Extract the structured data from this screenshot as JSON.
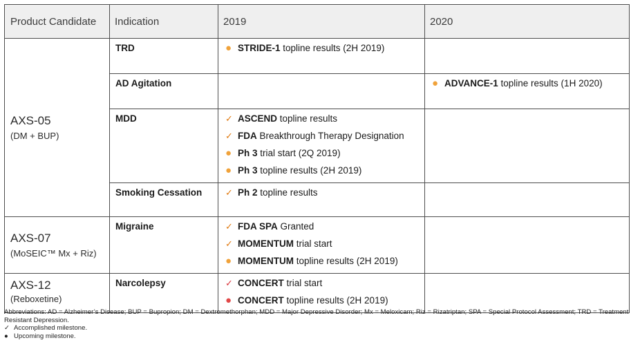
{
  "header": {
    "product": "Product Candidate",
    "indication": "Indication",
    "y2019": "2019",
    "y2020": "2020"
  },
  "products": [
    {
      "name": "AXS-05",
      "sub": "(DM + BUP)"
    },
    {
      "name": "AXS-07",
      "sub": "(MoSEIC™ Mx + Riz)"
    },
    {
      "name": "AXS-12",
      "sub": "(Reboxetine)"
    }
  ],
  "rows": [
    {
      "indication": "TRD",
      "m2019": [
        {
          "icon": "upcoming-dot",
          "bold": "STRIDE-1",
          "rest": " topline results (2H 2019)"
        }
      ],
      "m2020": []
    },
    {
      "indication": "AD Agitation",
      "m2019": [],
      "m2020": [
        {
          "icon": "upcoming-dot",
          "bold": "ADVANCE-1",
          "rest": " topline results (1H 2020)"
        }
      ]
    },
    {
      "indication": "MDD",
      "m2019": [
        {
          "icon": "check",
          "bold": "ASCEND",
          "rest": " topline results"
        },
        {
          "icon": "check",
          "bold": "FDA",
          "rest": " Breakthrough Therapy Designation"
        },
        {
          "icon": "upcoming-dot",
          "bold": "Ph 3",
          "rest": " trial start (2Q 2019)"
        },
        {
          "icon": "upcoming-dot",
          "bold": "Ph 3",
          "rest": " topline results (2H 2019)"
        }
      ],
      "m2020": []
    },
    {
      "indication": "Smoking Cessation",
      "m2019": [
        {
          "icon": "check",
          "bold": "Ph 2",
          "rest": " topline results"
        }
      ],
      "m2020": []
    },
    {
      "indication": "Migraine",
      "m2019": [
        {
          "icon": "check",
          "bold": "FDA SPA",
          "rest": " Granted"
        },
        {
          "icon": "check",
          "bold": "MOMENTUM",
          "rest": " trial start"
        },
        {
          "icon": "upcoming-dot",
          "bold": "MOMENTUM",
          "rest": " topline results (2H 2019)"
        }
      ],
      "m2020": []
    },
    {
      "indication": "Narcolepsy",
      "m2019": [
        {
          "icon": "check-red",
          "bold": "CONCERT",
          "rest": " trial start"
        },
        {
          "icon": "upcoming-dot-red",
          "bold": "CONCERT",
          "rest": " topline results (2H 2019)"
        }
      ],
      "m2020": []
    }
  ],
  "notes": {
    "abbreviations": "Abbreviations: AD = Alzheimer’s Disease; BUP = Bupropion; DM = Dextromethorphan; MDD = Major Depressive Disorder; Mx = Meloxicam; Riz = Rizatriptan; SPA = Special Protocol Assessment; TRD = Treatment Resistant Depression.",
    "legend": [
      {
        "icon": "check",
        "symbol": "✓",
        "text": "Accomplished milestone."
      },
      {
        "icon": "upcoming-dot",
        "symbol": "●",
        "text": "Upcoming milestone."
      }
    ]
  },
  "colors": {
    "accomplished": "#e07b12",
    "upcoming": "#f0a23a",
    "upcoming_red": "#e24848",
    "header_bg": "#efefef",
    "border": "#4d4d4d"
  }
}
